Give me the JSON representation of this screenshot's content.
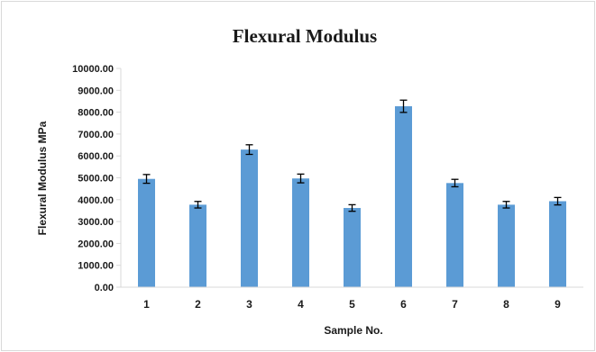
{
  "chart_data": {
    "type": "bar",
    "title": "Flexural Modulus",
    "xlabel": "Sample No.",
    "ylabel": "Flexural Modulus MPa",
    "categories": [
      "1",
      "2",
      "3",
      "4",
      "5",
      "6",
      "7",
      "8",
      "9"
    ],
    "values": [
      4950,
      3770,
      6290,
      4970,
      3620,
      8270,
      4760,
      3770,
      3930
    ],
    "errors": [
      200,
      150,
      220,
      200,
      150,
      280,
      170,
      150,
      170
    ],
    "ylim": [
      0,
      10000
    ],
    "yticks": [
      "0.00",
      "1000.00",
      "2000.00",
      "3000.00",
      "4000.00",
      "5000.00",
      "6000.00",
      "7000.00",
      "8000.00",
      "9000.00",
      "10000.00"
    ],
    "grid": false,
    "legend": "none",
    "bar_color": "#5b9bd5",
    "error_bar_color": "#000000",
    "axis_color": "#d9d9d9"
  }
}
